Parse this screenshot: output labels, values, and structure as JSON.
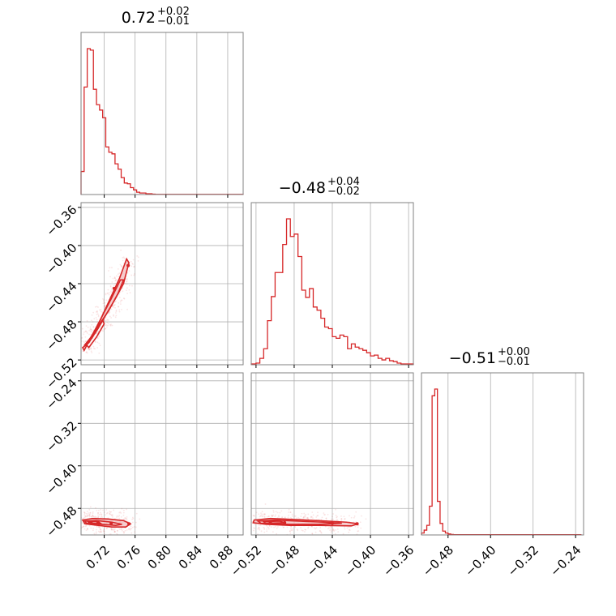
{
  "colors": {
    "series": "#d62728",
    "series_fill": "#f4c2c3",
    "grid": "#b0b0b0",
    "axes": "#808080"
  },
  "chart_data": {
    "type": "corner",
    "grid": true,
    "parameters": [
      {
        "index": 0,
        "range": [
          0.69,
          0.9
        ],
        "median": "0.72",
        "plus": "+0.02",
        "minus": "−0.01",
        "ticks": [
          0.72,
          0.76,
          0.8,
          0.84,
          0.88
        ],
        "tick_labels": [
          "0.72",
          "0.76",
          "0.80",
          "0.84",
          "0.88"
        ]
      },
      {
        "index": 1,
        "range": [
          -0.525,
          -0.355
        ],
        "median": "−0.48",
        "plus": "+0.04",
        "minus": "−0.02",
        "ticks": [
          -0.52,
          -0.48,
          -0.44,
          -0.4,
          -0.36
        ],
        "tick_labels": [
          "−0.52",
          "−0.48",
          "−0.44",
          "−0.40",
          "−0.36"
        ]
      },
      {
        "index": 2,
        "range": [
          -0.53,
          -0.225
        ],
        "median": "−0.51",
        "plus": "+0.00",
        "minus": "−0.01",
        "ticks": [
          -0.48,
          -0.4,
          -0.32,
          -0.24
        ],
        "tick_labels": [
          "−0.48",
          "−0.40",
          "−0.32",
          "−0.24"
        ]
      }
    ],
    "histograms": [
      {
        "param": 0,
        "bin_edges": [
          0.69,
          0.694,
          0.698,
          0.702,
          0.706,
          0.71,
          0.714,
          0.718,
          0.722,
          0.726,
          0.73,
          0.734,
          0.738,
          0.742,
          0.746,
          0.75,
          0.754,
          0.758,
          0.762,
          0.766,
          0.77,
          0.774,
          0.778,
          0.782,
          0.786,
          0.79,
          0.86,
          0.9
        ],
        "counts": [
          30,
          140,
          190,
          188,
          137,
          117,
          110,
          100,
          62,
          55,
          53,
          40,
          33,
          22,
          15,
          14,
          9,
          6,
          3,
          2,
          2,
          1,
          1,
          0.5,
          0.3,
          0.3,
          0.2
        ]
      },
      {
        "param": 1,
        "bin_edges": [
          -0.525,
          -0.52,
          -0.516,
          -0.512,
          -0.508,
          -0.504,
          -0.5,
          -0.496,
          -0.492,
          -0.488,
          -0.484,
          -0.48,
          -0.476,
          -0.472,
          -0.468,
          -0.464,
          -0.46,
          -0.456,
          -0.452,
          -0.448,
          -0.444,
          -0.44,
          -0.436,
          -0.432,
          -0.428,
          -0.424,
          -0.42,
          -0.416,
          -0.412,
          -0.408,
          -0.404,
          -0.4,
          -0.396,
          -0.392,
          -0.388,
          -0.384,
          -0.38,
          -0.376,
          -0.372,
          -0.368,
          -0.364,
          -0.36,
          -0.355
        ],
        "counts": [
          1,
          2,
          8,
          20,
          55,
          85,
          115,
          115,
          150,
          182,
          160,
          163,
          135,
          93,
          84,
          95,
          72,
          68,
          58,
          47,
          45,
          35,
          33,
          37,
          35,
          20,
          26,
          22,
          20,
          18,
          15,
          11,
          12,
          8,
          6,
          8,
          5,
          4,
          2,
          1,
          1,
          1
        ]
      },
      {
        "param": 2,
        "bin_edges": [
          -0.53,
          -0.525,
          -0.52,
          -0.515,
          -0.51,
          -0.505,
          -0.5,
          -0.495,
          -0.49,
          -0.485,
          -0.48,
          -0.475,
          -0.47,
          -0.23
        ],
        "counts": [
          2,
          5,
          10,
          30,
          145,
          152,
          35,
          12,
          4,
          2,
          1,
          0.5,
          0.3
        ]
      }
    ],
    "scatter_2d": [
      {
        "x_param": 0,
        "y_param": 1,
        "contours": [
          [
            [
              0.692,
              -0.507
            ],
            [
              0.7,
              -0.502
            ],
            [
              0.712,
              -0.487
            ],
            [
              0.722,
              -0.473
            ],
            [
              0.735,
              -0.455
            ],
            [
              0.745,
              -0.44
            ],
            [
              0.752,
              -0.418
            ],
            [
              0.749,
              -0.414
            ],
            [
              0.74,
              -0.434
            ],
            [
              0.727,
              -0.457
            ],
            [
              0.715,
              -0.478
            ],
            [
              0.703,
              -0.496
            ],
            [
              0.694,
              -0.51
            ]
          ],
          [
            [
              0.694,
              -0.505
            ],
            [
              0.704,
              -0.495
            ],
            [
              0.716,
              -0.48
            ],
            [
              0.726,
              -0.468
            ],
            [
              0.738,
              -0.45
            ],
            [
              0.745,
              -0.436
            ],
            [
              0.741,
              -0.436
            ],
            [
              0.729,
              -0.456
            ],
            [
              0.718,
              -0.473
            ],
            [
              0.708,
              -0.489
            ],
            [
              0.697,
              -0.504
            ]
          ],
          [
            [
              0.697,
              -0.504
            ],
            [
              0.707,
              -0.493
            ],
            [
              0.718,
              -0.478
            ],
            [
              0.72,
              -0.482
            ],
            [
              0.71,
              -0.496
            ],
            [
              0.7,
              -0.507
            ]
          ]
        ],
        "points": [
          [
            0.713,
            -0.483
          ],
          [
            0.733,
            -0.445
          ],
          [
            0.751,
            -0.421
          ]
        ]
      },
      {
        "x_param": 0,
        "y_param": 2,
        "contours": [
          [
            [
              0.692,
              -0.502
            ],
            [
              0.705,
              -0.499
            ],
            [
              0.725,
              -0.5
            ],
            [
              0.745,
              -0.503
            ],
            [
              0.754,
              -0.509
            ],
            [
              0.748,
              -0.515
            ],
            [
              0.73,
              -0.515
            ],
            [
              0.712,
              -0.512
            ],
            [
              0.695,
              -0.509
            ]
          ],
          [
            [
              0.695,
              -0.504
            ],
            [
              0.71,
              -0.503
            ],
            [
              0.73,
              -0.506
            ],
            [
              0.743,
              -0.51
            ],
            [
              0.735,
              -0.512
            ],
            [
              0.715,
              -0.51
            ],
            [
              0.697,
              -0.508
            ]
          ],
          [
            [
              0.699,
              -0.505
            ],
            [
              0.712,
              -0.505
            ],
            [
              0.716,
              -0.509
            ],
            [
              0.701,
              -0.508
            ]
          ]
        ],
        "points": [
          [
            0.703,
            -0.506
          ],
          [
            0.712,
            -0.507
          ],
          [
            0.729,
            -0.508
          ],
          [
            0.752,
            -0.509
          ]
        ]
      },
      {
        "x_param": 1,
        "y_param": 2,
        "contours": [
          [
            [
              -0.522,
              -0.502
            ],
            [
              -0.505,
              -0.499
            ],
            [
              -0.48,
              -0.501
            ],
            [
              -0.455,
              -0.503
            ],
            [
              -0.425,
              -0.506
            ],
            [
              -0.413,
              -0.509
            ],
            [
              -0.42,
              -0.513
            ],
            [
              -0.455,
              -0.512
            ],
            [
              -0.485,
              -0.512
            ],
            [
              -0.51,
              -0.51
            ],
            [
              -0.523,
              -0.507
            ]
          ],
          [
            [
              -0.518,
              -0.504
            ],
            [
              -0.5,
              -0.502
            ],
            [
              -0.475,
              -0.504
            ],
            [
              -0.45,
              -0.506
            ],
            [
              -0.43,
              -0.508
            ],
            [
              -0.455,
              -0.51
            ],
            [
              -0.485,
              -0.51
            ],
            [
              -0.515,
              -0.508
            ]
          ],
          [
            [
              -0.512,
              -0.505
            ],
            [
              -0.495,
              -0.504
            ],
            [
              -0.49,
              -0.507
            ],
            [
              -0.51,
              -0.508
            ]
          ]
        ],
        "points": [
          [
            -0.505,
            -0.506
          ],
          [
            -0.49,
            -0.507
          ],
          [
            -0.44,
            -0.508
          ],
          [
            -0.414,
            -0.509
          ]
        ]
      }
    ]
  }
}
